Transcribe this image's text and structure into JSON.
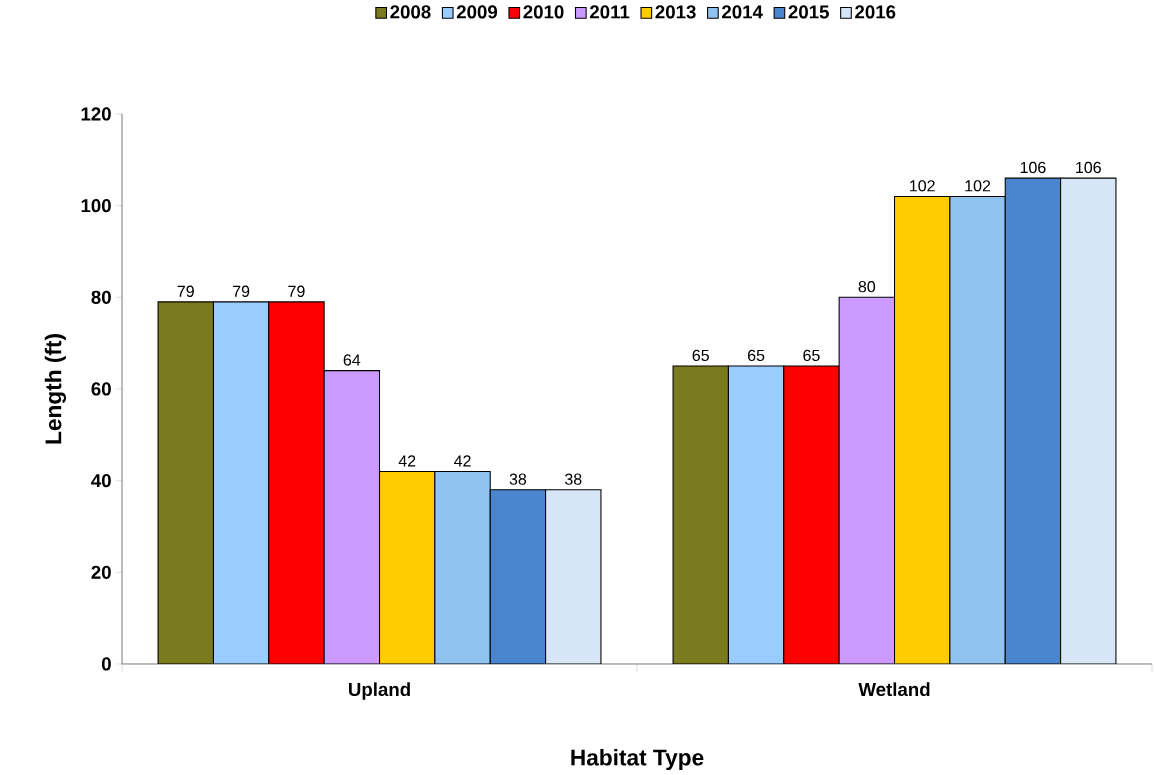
{
  "chart_data": {
    "type": "bar",
    "categories": [
      "Upland",
      "Wetland"
    ],
    "xlabel": "Habitat Type",
    "ylabel": "Length (ft)",
    "ylim": [
      0,
      120
    ],
    "yticks": [
      0,
      20,
      40,
      60,
      80,
      100,
      120
    ],
    "series": [
      {
        "name": "2008",
        "color": "#7a7a1e",
        "values": [
          79,
          65
        ]
      },
      {
        "name": "2009",
        "color": "#99ccff",
        "values": [
          79,
          65
        ]
      },
      {
        "name": "2010",
        "color": "#ff0000",
        "values": [
          79,
          65
        ]
      },
      {
        "name": "2011",
        "color": "#cc99ff",
        "values": [
          64,
          80
        ]
      },
      {
        "name": "2013",
        "color": "#ffcc00",
        "values": [
          42,
          102
        ]
      },
      {
        "name": "2014",
        "color": "#8fc3f0",
        "values": [
          42,
          102
        ]
      },
      {
        "name": "2015",
        "color": "#4a86d0",
        "values": [
          38,
          106
        ]
      },
      {
        "name": "2016",
        "color": "#d6e6f7",
        "values": [
          38,
          106
        ]
      }
    ],
    "data_labels": true,
    "grid": false,
    "legend": "top"
  }
}
